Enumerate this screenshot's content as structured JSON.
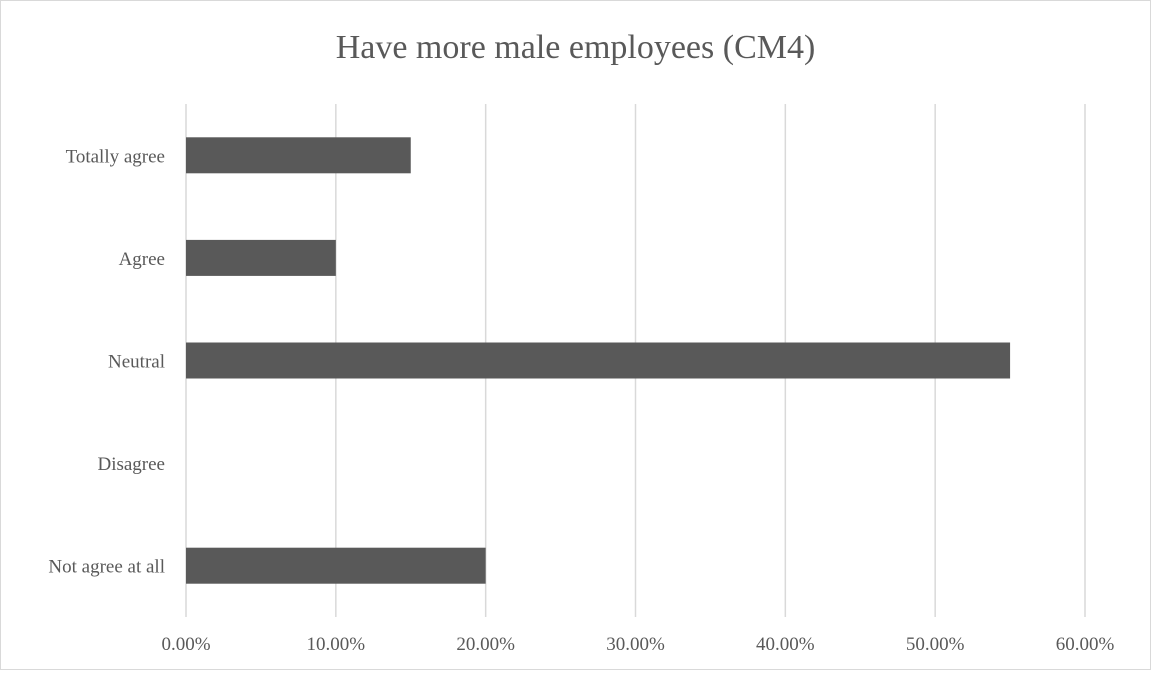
{
  "chart_data": {
    "type": "bar",
    "orientation": "horizontal",
    "title": "Have more male employees (CM4)",
    "xlabel": "",
    "ylabel": "",
    "categories": [
      "Not agree at all",
      "Disagree",
      "Neutral",
      "Agree",
      "Totally agree"
    ],
    "values": [
      20,
      0,
      55,
      10,
      15
    ],
    "unit": "%",
    "xlim": [
      0,
      60
    ],
    "ticks": [
      "0.00%",
      "10.00%",
      "20.00%",
      "30.00%",
      "40.00%",
      "50.00%",
      "60.00%"
    ],
    "grid": true,
    "legend": "none",
    "colors": {
      "bar": "#595959",
      "grid": "#d9d9d9",
      "text": "#595959"
    }
  }
}
